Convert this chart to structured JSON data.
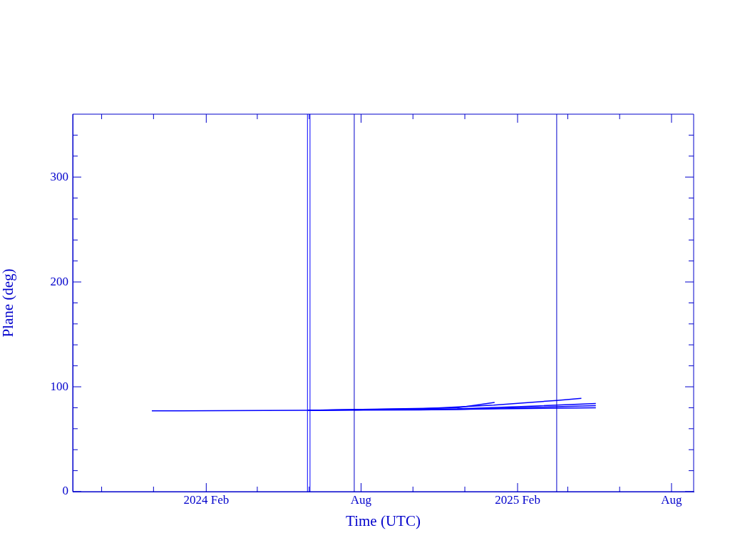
{
  "chart_data": {
    "type": "line",
    "xlabel": "Time (UTC)",
    "ylabel": "Plane (deg)",
    "xlim": [
      "2023-08-28",
      "2025-08-27"
    ],
    "xticks": [
      {
        "value": "2023-10-01",
        "label": null
      },
      {
        "value": "2023-12-01",
        "label": null
      },
      {
        "value": "2024-02-01",
        "label": "2024 Feb"
      },
      {
        "value": "2024-04-01",
        "label": null
      },
      {
        "value": "2024-06-01",
        "label": null
      },
      {
        "value": "2024-08-01",
        "label": "Aug"
      },
      {
        "value": "2024-10-01",
        "label": null
      },
      {
        "value": "2024-12-01",
        "label": null
      },
      {
        "value": "2025-02-01",
        "label": "2025 Feb"
      },
      {
        "value": "2025-04-01",
        "label": null
      },
      {
        "value": "2025-06-01",
        "label": null
      },
      {
        "value": "2025-08-01",
        "label": "Aug"
      }
    ],
    "ylim": [
      0,
      360
    ],
    "yticks": [
      0,
      {
        "value": 20,
        "label": null
      },
      {
        "value": 40,
        "label": null
      },
      {
        "value": 60,
        "label": null
      },
      {
        "value": 80,
        "label": null
      },
      100,
      {
        "value": 120,
        "label": null
      },
      {
        "value": 140,
        "label": null
      },
      {
        "value": 160,
        "label": null
      },
      {
        "value": 180,
        "label": null
      },
      200,
      {
        "value": 220,
        "label": null
      },
      {
        "value": 240,
        "label": null
      },
      {
        "value": 260,
        "label": null
      },
      {
        "value": 280,
        "label": null
      },
      300,
      {
        "value": 320,
        "label": null
      },
      {
        "value": 340,
        "label": null
      }
    ],
    "grid": false,
    "legend": false,
    "marker": "none",
    "line_style": "solid",
    "series": [
      {
        "color": "#0000ff",
        "x": [
          "2023-11-29",
          "2024-05-31",
          "2024-10-09",
          "2025-01-04",
          "2025-05-04"
        ],
        "values": [
          77,
          77.5,
          78,
          79,
          80
        ]
      },
      {
        "color": "#0000ff",
        "x": [
          "2024-05-31",
          "2024-10-09",
          "2025-01-04",
          "2025-03-19",
          "2025-04-17"
        ],
        "values": [
          77.5,
          79,
          82.5,
          87,
          89
        ]
      },
      {
        "color": "#0000ff",
        "x": [
          "2024-05-31",
          "2024-11-22",
          "2025-01-05"
        ],
        "values": [
          77.5,
          80,
          85
        ]
      },
      {
        "color": "#0000ff",
        "x": [
          "2024-05-31",
          "2024-11-22",
          "2025-02-17",
          "2025-05-04"
        ],
        "values": [
          77.5,
          79,
          81.5,
          84
        ]
      },
      {
        "color": "#0000ff",
        "x": [
          "2024-07-24",
          "2024-11-22",
          "2025-05-04"
        ],
        "values": [
          78,
          78.5,
          82
        ]
      }
    ],
    "ref_lines": [
      {
        "axis": "x",
        "value": "2024-05-30",
        "color": "#0000ff"
      },
      {
        "axis": "x",
        "value": "2024-06-02",
        "color": "#0000ff"
      },
      {
        "axis": "x",
        "value": "2024-07-24",
        "color": "#0000cc"
      },
      {
        "axis": "x",
        "value": "2025-03-19",
        "color": "#0000cc"
      }
    ]
  }
}
